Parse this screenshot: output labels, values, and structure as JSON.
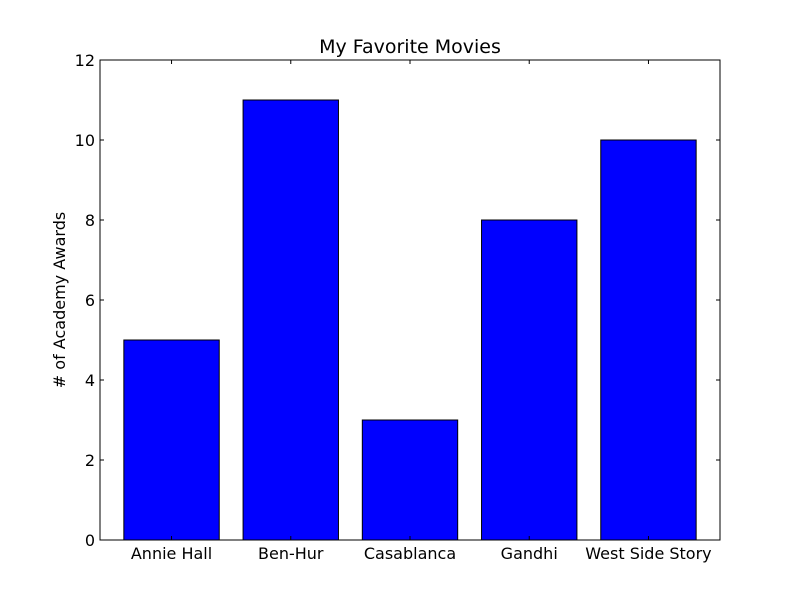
{
  "chart_data": {
    "type": "bar",
    "title": "My Favorite Movies",
    "xlabel": "",
    "ylabel": "# of Academy Awards",
    "categories": [
      "Annie Hall",
      "Ben-Hur",
      "Casablanca",
      "Gandhi",
      "West Side Story"
    ],
    "values": [
      5,
      11,
      3,
      8,
      10
    ],
    "ylim": [
      0,
      12
    ],
    "yticks": [
      0,
      2,
      4,
      6,
      8,
      10,
      12
    ],
    "bar_color": "#0000ff",
    "edge_color": "#000000",
    "grid": false,
    "legend": "none"
  }
}
